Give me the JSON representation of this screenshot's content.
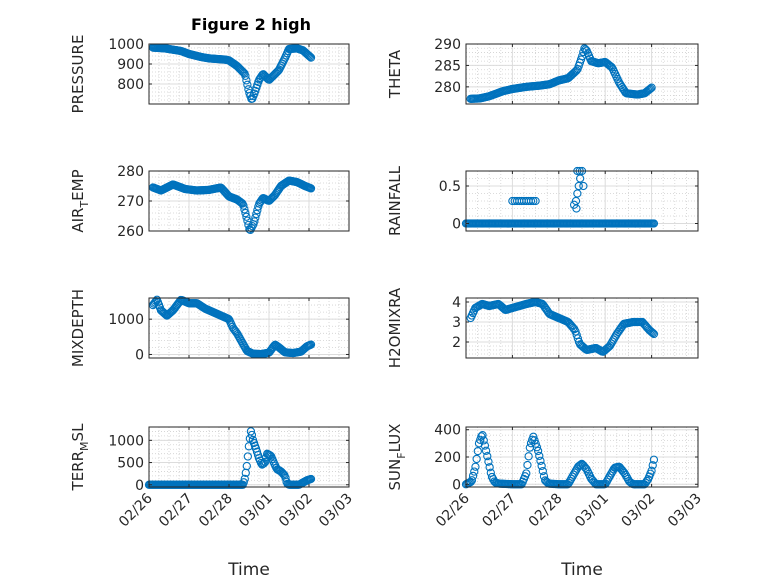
{
  "figure": {
    "title": "Figure 2 high",
    "marker_color": "#0072BD",
    "x_axis": {
      "label": "Time",
      "range": [
        0,
        5
      ],
      "ticks": [
        0,
        1,
        2,
        3,
        4,
        5
      ],
      "tick_labels": [
        "02/26",
        "02/27",
        "02/28",
        "03/01",
        "03/02",
        "03/03"
      ]
    }
  },
  "chart_data": [
    {
      "type": "scatter",
      "ylabel": "PRESSURE",
      "ylim": [
        700,
        1000
      ],
      "yticks": [
        800,
        900,
        1000
      ],
      "grid": true,
      "anchors": [
        [
          0.1,
          982
        ],
        [
          0.4,
          978
        ],
        [
          0.8,
          965
        ],
        [
          1.0,
          950
        ],
        [
          1.3,
          935
        ],
        [
          1.5,
          928
        ],
        [
          1.7,
          925
        ],
        [
          1.9,
          922
        ],
        [
          2.0,
          918
        ],
        [
          2.2,
          890
        ],
        [
          2.3,
          870
        ],
        [
          2.4,
          850
        ],
        [
          2.5,
          760
        ],
        [
          2.57,
          720
        ],
        [
          2.65,
          760
        ],
        [
          2.75,
          820
        ],
        [
          2.85,
          850
        ],
        [
          3.0,
          820
        ],
        [
          3.1,
          840
        ],
        [
          3.25,
          870
        ],
        [
          3.4,
          930
        ],
        [
          3.5,
          975
        ],
        [
          3.7,
          978
        ],
        [
          3.85,
          968
        ],
        [
          3.95,
          950
        ],
        [
          4.05,
          932
        ]
      ]
    },
    {
      "type": "scatter",
      "ylabel": "THETA",
      "ylim": [
        276,
        290
      ],
      "yticks": [
        280,
        285,
        290
      ],
      "grid": true,
      "anchors": [
        [
          0.1,
          277.2
        ],
        [
          0.3,
          277.3
        ],
        [
          0.5,
          277.8
        ],
        [
          0.8,
          279
        ],
        [
          1.0,
          279.5
        ],
        [
          1.3,
          280
        ],
        [
          1.6,
          280.3
        ],
        [
          1.8,
          280.6
        ],
        [
          2.0,
          281.5
        ],
        [
          2.2,
          282
        ],
        [
          2.4,
          284
        ],
        [
          2.5,
          287
        ],
        [
          2.55,
          289
        ],
        [
          2.6,
          288.5
        ],
        [
          2.7,
          286
        ],
        [
          2.85,
          285.5
        ],
        [
          3.0,
          285.8
        ],
        [
          3.15,
          284.5
        ],
        [
          3.3,
          281
        ],
        [
          3.45,
          278.5
        ],
        [
          3.7,
          278.2
        ],
        [
          3.85,
          278.5
        ],
        [
          4.0,
          279.8
        ]
      ]
    },
    {
      "type": "scatter",
      "ylabel_main": "AIR",
      "ylabel_sub": "T",
      "ylabel_rest": "EMP",
      "ylim": [
        260,
        280
      ],
      "yticks": [
        260,
        270,
        280
      ],
      "grid": true,
      "anchors": [
        [
          0.1,
          274.5
        ],
        [
          0.3,
          273.5
        ],
        [
          0.6,
          275.5
        ],
        [
          0.9,
          274
        ],
        [
          1.2,
          273.5
        ],
        [
          1.5,
          273.7
        ],
        [
          1.8,
          274.5
        ],
        [
          2.0,
          271.5
        ],
        [
          2.2,
          270.5
        ],
        [
          2.35,
          269
        ],
        [
          2.45,
          264
        ],
        [
          2.52,
          260
        ],
        [
          2.62,
          262.5
        ],
        [
          2.75,
          269
        ],
        [
          2.85,
          271
        ],
        [
          3.0,
          270
        ],
        [
          3.15,
          272
        ],
        [
          3.3,
          275
        ],
        [
          3.5,
          276.8
        ],
        [
          3.7,
          276.3
        ],
        [
          3.9,
          275
        ],
        [
          4.05,
          274.2
        ]
      ]
    },
    {
      "type": "scatter",
      "ylabel": "RAINFALL",
      "ylim": [
        -0.1,
        0.7
      ],
      "yticks": [
        0,
        0.5
      ],
      "grid": true,
      "anchors": [
        [
          0.0,
          0
        ],
        [
          4.05,
          0
        ]
      ],
      "extra_points": [
        [
          1.0,
          0.3
        ],
        [
          1.05,
          0.3
        ],
        [
          1.1,
          0.3
        ],
        [
          1.15,
          0.3
        ],
        [
          1.2,
          0.3
        ],
        [
          1.25,
          0.3
        ],
        [
          1.3,
          0.3
        ],
        [
          1.35,
          0.3
        ],
        [
          1.4,
          0.3
        ],
        [
          1.45,
          0.3
        ],
        [
          1.5,
          0.3
        ],
        [
          2.33,
          0.25
        ],
        [
          2.37,
          0.3
        ],
        [
          2.4,
          0.4
        ],
        [
          2.43,
          0.5
        ],
        [
          2.46,
          0.6
        ],
        [
          2.4,
          0.7
        ],
        [
          2.45,
          0.7
        ],
        [
          2.5,
          0.7
        ],
        [
          2.53,
          0.5
        ],
        [
          2.38,
          0.2
        ]
      ]
    },
    {
      "type": "scatter",
      "ylabel": "MIXDEPTH",
      "ylim": [
        -100,
        1600
      ],
      "yticks": [
        0,
        1000
      ],
      "grid": true,
      "anchors": [
        [
          0.1,
          1400
        ],
        [
          0.2,
          1550
        ],
        [
          0.3,
          1250
        ],
        [
          0.45,
          1100
        ],
        [
          0.6,
          1250
        ],
        [
          0.8,
          1550
        ],
        [
          1.0,
          1450
        ],
        [
          1.2,
          1450
        ],
        [
          1.4,
          1300
        ],
        [
          1.6,
          1200
        ],
        [
          1.8,
          1100
        ],
        [
          2.0,
          1000
        ],
        [
          2.1,
          750
        ],
        [
          2.2,
          600
        ],
        [
          2.35,
          300
        ],
        [
          2.45,
          100
        ],
        [
          2.6,
          20
        ],
        [
          2.8,
          10
        ],
        [
          3.0,
          50
        ],
        [
          3.15,
          280
        ],
        [
          3.25,
          200
        ],
        [
          3.4,
          60
        ],
        [
          3.6,
          40
        ],
        [
          3.8,
          80
        ],
        [
          3.95,
          230
        ],
        [
          4.05,
          280
        ]
      ]
    },
    {
      "type": "scatter",
      "ylabel": "H2OMIXRA",
      "ylim": [
        1.2,
        4.2
      ],
      "yticks": [
        2,
        3,
        4
      ],
      "grid": true,
      "anchors": [
        [
          0.1,
          3.2
        ],
        [
          0.2,
          3.7
        ],
        [
          0.35,
          3.9
        ],
        [
          0.5,
          3.8
        ],
        [
          0.7,
          3.9
        ],
        [
          0.85,
          3.6
        ],
        [
          1.0,
          3.7
        ],
        [
          1.3,
          3.9
        ],
        [
          1.5,
          4.0
        ],
        [
          1.65,
          3.9
        ],
        [
          1.8,
          3.4
        ],
        [
          2.0,
          3.2
        ],
        [
          2.2,
          3.0
        ],
        [
          2.35,
          2.6
        ],
        [
          2.45,
          1.9
        ],
        [
          2.6,
          1.6
        ],
        [
          2.8,
          1.7
        ],
        [
          2.95,
          1.5
        ],
        [
          3.1,
          1.8
        ],
        [
          3.25,
          2.4
        ],
        [
          3.4,
          2.9
        ],
        [
          3.6,
          3.0
        ],
        [
          3.8,
          3.0
        ],
        [
          3.95,
          2.6
        ],
        [
          4.05,
          2.4
        ]
      ]
    },
    {
      "type": "scatter",
      "ylabel_main": "TERR",
      "ylabel_sub": "M",
      "ylabel_rest": "SL",
      "ylim": [
        -50,
        1300
      ],
      "yticks": [
        0,
        500,
        1000
      ],
      "grid": true,
      "anchors": [
        [
          0.0,
          0
        ],
        [
          2.35,
          0
        ],
        [
          2.4,
          150
        ],
        [
          2.45,
          450
        ],
        [
          2.5,
          900
        ],
        [
          2.55,
          1220
        ],
        [
          2.6,
          1000
        ],
        [
          2.68,
          800
        ],
        [
          2.75,
          600
        ],
        [
          2.82,
          450
        ],
        [
          2.9,
          500
        ],
        [
          2.95,
          700
        ],
        [
          3.05,
          650
        ],
        [
          3.12,
          500
        ],
        [
          3.2,
          350
        ],
        [
          3.3,
          300
        ],
        [
          3.4,
          200
        ],
        [
          3.45,
          30
        ],
        [
          3.5,
          0
        ],
        [
          3.75,
          0
        ],
        [
          3.85,
          50
        ],
        [
          3.95,
          100
        ],
        [
          4.05,
          130
        ]
      ]
    },
    {
      "type": "scatter",
      "ylabel_main": "SUN",
      "ylabel_sub": "F",
      "ylabel_rest": "LUX",
      "ylim": [
        -20,
        420
      ],
      "yticks": [
        0,
        200,
        400
      ],
      "grid": true,
      "anchors": [
        [
          0.0,
          0
        ],
        [
          0.12,
          20
        ],
        [
          0.2,
          120
        ],
        [
          0.28,
          300
        ],
        [
          0.35,
          370
        ],
        [
          0.45,
          220
        ],
        [
          0.55,
          60
        ],
        [
          0.62,
          15
        ],
        [
          0.7,
          5
        ],
        [
          1.0,
          0
        ],
        [
          1.2,
          0
        ],
        [
          1.3,
          80
        ],
        [
          1.38,
          280
        ],
        [
          1.45,
          350
        ],
        [
          1.55,
          250
        ],
        [
          1.62,
          150
        ],
        [
          1.7,
          30
        ],
        [
          1.78,
          5
        ],
        [
          2.0,
          0
        ],
        [
          2.2,
          0
        ],
        [
          2.3,
          60
        ],
        [
          2.42,
          130
        ],
        [
          2.5,
          150
        ],
        [
          2.6,
          110
        ],
        [
          2.7,
          40
        ],
        [
          2.8,
          0
        ],
        [
          3.0,
          0
        ],
        [
          3.1,
          60
        ],
        [
          3.2,
          120
        ],
        [
          3.3,
          130
        ],
        [
          3.42,
          80
        ],
        [
          3.52,
          20
        ],
        [
          3.6,
          0
        ],
        [
          3.85,
          0
        ],
        [
          3.93,
          40
        ],
        [
          4.0,
          100
        ],
        [
          4.05,
          180
        ]
      ]
    }
  ]
}
